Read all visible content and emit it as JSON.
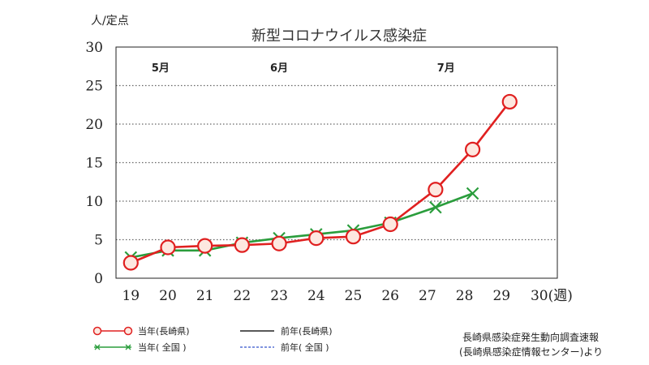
{
  "chart_data": {
    "type": "line",
    "title": "新型コロナウイルス感染症",
    "ylabel": "人/定点",
    "ylim": [
      0,
      30
    ],
    "yticks": [
      0,
      5,
      10,
      15,
      20,
      25,
      30
    ],
    "x_ticks": [
      "19",
      "20",
      "21",
      "22",
      "23",
      "24",
      "25",
      "26",
      "27",
      "28",
      "29",
      "30(週)"
    ],
    "months": [
      {
        "label": "5月",
        "week": 19.8
      },
      {
        "label": "6月",
        "week": 23.0
      },
      {
        "label": "7月",
        "week": 27.5
      }
    ],
    "grid": "horizontal-dotted",
    "colors": {
      "nagasaki_current": "#e02020",
      "national_current": "#2a9d3c",
      "nagasaki_prev": "#222222",
      "national_prev": "#3355cc"
    },
    "series": [
      {
        "name": "当年(長崎県)",
        "x": [
          19,
          20,
          21,
          22,
          23,
          24,
          25,
          26,
          27,
          28,
          29
        ],
        "values": [
          2.0,
          4.0,
          4.2,
          4.3,
          4.5,
          5.2,
          5.4,
          7.0,
          11.5,
          16.7,
          22.9
        ]
      },
      {
        "name": "当年( 全国 )",
        "x": [
          19,
          20,
          21,
          22,
          23,
          24,
          25,
          26,
          27,
          28
        ],
        "values": [
          2.7,
          3.6,
          3.6,
          4.6,
          5.2,
          5.7,
          6.2,
          7.2,
          9.2,
          11.0
        ]
      }
    ],
    "legend": [
      {
        "label": "当年(長崎県)",
        "style": "red-circle"
      },
      {
        "label": "当年( 全国 )",
        "style": "green-x"
      },
      {
        "label": "前年(長崎県)",
        "style": "black-solid"
      },
      {
        "label": "前年( 全国 )",
        "style": "blue-dashed"
      }
    ],
    "source": [
      "長崎県感染症発生動向調査速報",
      "(長崎県感染症情報センター)より"
    ]
  }
}
